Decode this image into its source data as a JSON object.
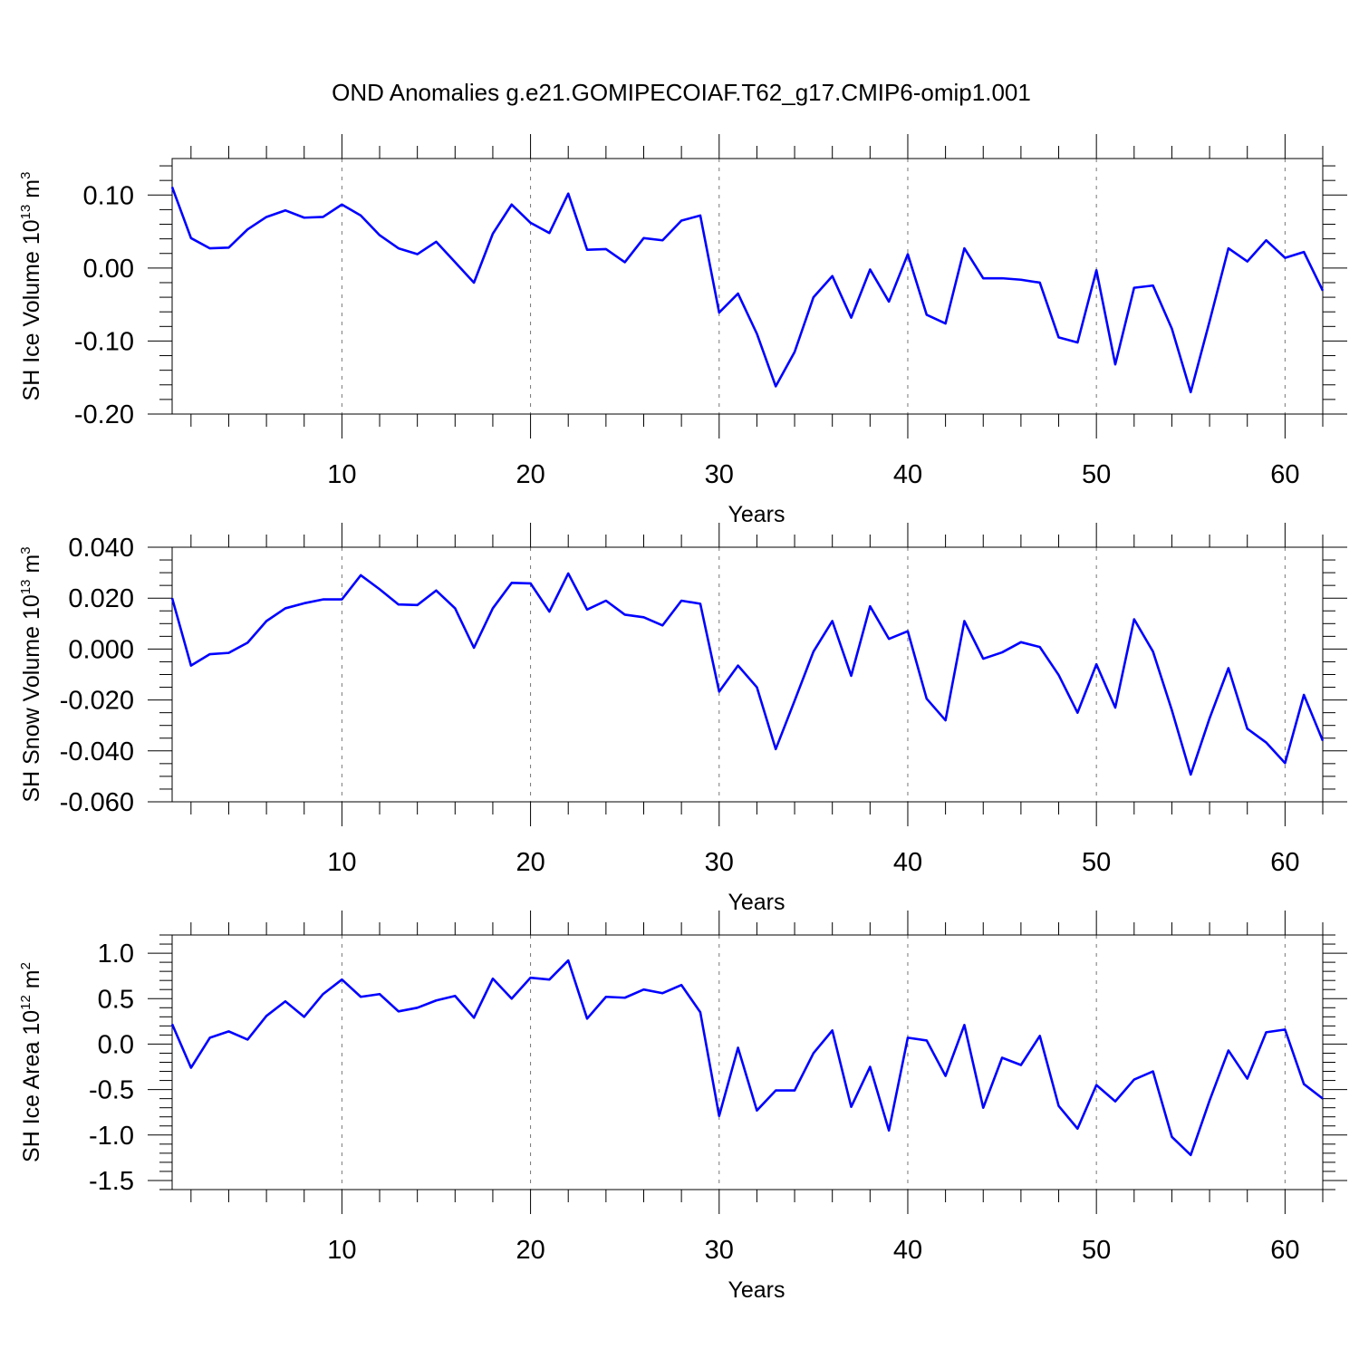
{
  "title": "OND Anomalies g.e21.GOMIPECOIAF.T62_g17.CMIP6-omip1.001",
  "chart_data": [
    {
      "type": "line",
      "name": "sh-ice-volume",
      "ylabel": {
        "text": "SH Ice Volume 10",
        "exp": "13",
        "unit": " m",
        "unit_exp": "3"
      },
      "xlabel": "Years",
      "xlim": [
        1,
        62
      ],
      "ylim": [
        -0.2,
        0.15
      ],
      "x_ticks": [
        10,
        20,
        30,
        40,
        50,
        60
      ],
      "y_ticks": [
        -0.2,
        -0.1,
        0.0,
        0.1
      ],
      "y_tick_labels": [
        "-0.20",
        "-0.10",
        "0.00",
        "0.10"
      ],
      "y_minor_step": 0.02,
      "color": "#0000ff",
      "series": [
        {
          "name": "SH Ice Volume",
          "x_start": 1,
          "values": [
            0.111,
            0.041,
            0.027,
            0.028,
            0.053,
            0.07,
            0.079,
            0.069,
            0.07,
            0.087,
            0.072,
            0.045,
            0.027,
            0.019,
            0.036,
            0.008,
            -0.02,
            0.047,
            0.087,
            0.062,
            0.048,
            0.102,
            0.025,
            0.026,
            0.008,
            0.041,
            0.038,
            0.065,
            0.072,
            -0.061,
            -0.035,
            -0.09,
            -0.162,
            -0.115,
            -0.04,
            -0.011,
            -0.068,
            -0.002,
            -0.046,
            0.019,
            -0.064,
            -0.076,
            0.027,
            -0.014,
            -0.014,
            -0.016,
            -0.02,
            -0.095,
            -0.102,
            -0.003,
            -0.132,
            -0.027,
            -0.024,
            -0.083,
            -0.17,
            -0.073,
            0.027,
            0.009,
            0.038,
            0.014,
            0.022,
            -0.031
          ]
        }
      ]
    },
    {
      "type": "line",
      "name": "sh-snow-volume",
      "ylabel": {
        "text": "SH Snow Volume 10",
        "exp": "13",
        "unit": " m",
        "unit_exp": "3"
      },
      "xlabel": "Years",
      "xlim": [
        1,
        62
      ],
      "ylim": [
        -0.06,
        0.04
      ],
      "x_ticks": [
        10,
        20,
        30,
        40,
        50,
        60
      ],
      "y_ticks": [
        -0.06,
        -0.04,
        -0.02,
        0.0,
        0.02,
        0.04
      ],
      "y_tick_labels": [
        "-0.060",
        "-0.040",
        "-0.020",
        "0.000",
        "0.020",
        "0.040"
      ],
      "y_minor_step": 0.005,
      "color": "#0000ff",
      "series": [
        {
          "name": "SH Snow Volume",
          "x_start": 1,
          "values": [
            0.02,
            -0.0065,
            -0.002,
            -0.0015,
            0.0025,
            0.011,
            0.016,
            0.018,
            0.0195,
            0.0195,
            0.029,
            0.0235,
            0.0175,
            0.0173,
            0.023,
            0.016,
            0.0005,
            0.016,
            0.026,
            0.0258,
            0.0147,
            0.0297,
            0.0155,
            0.019,
            0.0135,
            0.0125,
            0.0093,
            0.019,
            0.0178,
            -0.0167,
            -0.0065,
            -0.015,
            -0.0393,
            -0.0203,
            -0.001,
            0.011,
            -0.0105,
            0.0168,
            0.004,
            0.007,
            -0.0195,
            -0.028,
            0.011,
            -0.0038,
            -0.0013,
            0.0027,
            0.0008,
            -0.0102,
            -0.025,
            -0.006,
            -0.023,
            0.0117,
            -0.001,
            -0.024,
            -0.0493,
            -0.0272,
            -0.0075,
            -0.0313,
            -0.0367,
            -0.0448,
            -0.018,
            -0.036
          ]
        }
      ]
    },
    {
      "type": "line",
      "name": "sh-ice-area",
      "ylabel": {
        "text": "SH Ice Area 10",
        "exp": "12",
        "unit": " m",
        "unit_exp": "2"
      },
      "xlabel": "Years",
      "xlim": [
        1,
        62
      ],
      "ylim": [
        -1.6,
        1.2
      ],
      "x_ticks": [
        10,
        20,
        30,
        40,
        50,
        60
      ],
      "y_ticks": [
        -1.5,
        -1.0,
        -0.5,
        0.0,
        0.5,
        1.0
      ],
      "y_tick_labels": [
        "-1.5",
        "-1.0",
        "-0.5",
        "0.0",
        "0.5",
        "1.0"
      ],
      "y_minor_step": 0.1,
      "color": "#0000ff",
      "series": [
        {
          "name": "SH Ice Area",
          "x_start": 1,
          "values": [
            0.22,
            -0.26,
            0.07,
            0.14,
            0.05,
            0.31,
            0.47,
            0.3,
            0.55,
            0.71,
            0.52,
            0.55,
            0.36,
            0.4,
            0.48,
            0.53,
            0.29,
            0.72,
            0.5,
            0.73,
            0.71,
            0.92,
            0.28,
            0.52,
            0.51,
            0.6,
            0.56,
            0.65,
            0.35,
            -0.79,
            -0.04,
            -0.73,
            -0.51,
            -0.51,
            -0.1,
            0.15,
            -0.69,
            -0.25,
            -0.95,
            0.07,
            0.04,
            -0.35,
            0.21,
            -0.7,
            -0.15,
            -0.23,
            0.09,
            -0.68,
            -0.93,
            -0.45,
            -0.63,
            -0.39,
            -0.3,
            -1.02,
            -1.22,
            -0.62,
            -0.07,
            -0.38,
            0.13,
            0.16,
            -0.44,
            -0.6
          ]
        }
      ]
    }
  ]
}
